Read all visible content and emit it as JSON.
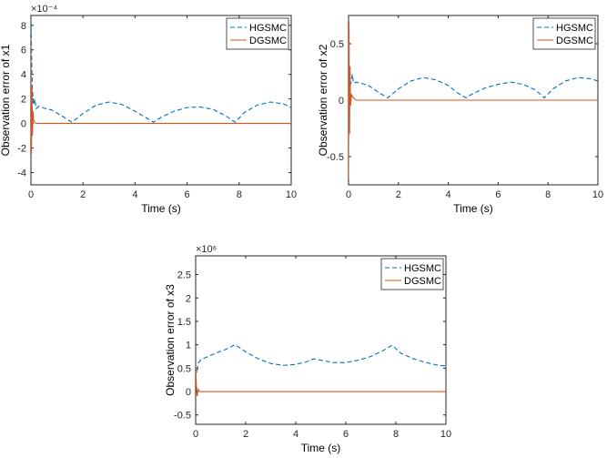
{
  "chart_data": [
    {
      "type": "line",
      "title": "",
      "xlabel": "Time (s)",
      "ylabel": "Observation error of x1",
      "exponent_label": "×10⁻⁴",
      "xlim": [
        0,
        10
      ],
      "ylim": [
        -5,
        8.8
      ],
      "x_ticks": [
        0,
        2,
        4,
        6,
        8,
        10
      ],
      "y_ticks": [
        -4,
        -2,
        0,
        2,
        4,
        6,
        8
      ],
      "legend": {
        "position": "top-right",
        "entries": [
          "HGSMC",
          "DGSMC"
        ]
      },
      "series": [
        {
          "name": "HGSMC",
          "color": "#0072BD",
          "style": "dashed",
          "x": [
            0.0,
            0.05,
            0.1,
            0.15,
            0.2,
            0.3,
            0.5,
            0.8,
            1.2,
            1.57,
            2.0,
            2.5,
            3.0,
            3.5,
            4.0,
            4.4,
            4.71,
            5.0,
            5.5,
            6.0,
            6.5,
            7.0,
            7.5,
            7.85,
            8.2,
            8.7,
            9.2,
            9.7,
            10.0
          ],
          "y": [
            8.5,
            3.0,
            1.5,
            2.0,
            1.2,
            1.4,
            1.25,
            1.1,
            0.6,
            0.1,
            0.8,
            1.5,
            1.75,
            1.55,
            1.0,
            0.5,
            0.1,
            0.5,
            1.0,
            1.3,
            1.35,
            1.15,
            0.6,
            0.1,
            0.9,
            1.5,
            1.75,
            1.6,
            1.3
          ]
        },
        {
          "name": "DGSMC",
          "color": "#D95319",
          "style": "solid",
          "x": [
            0.0,
            0.02,
            0.04,
            0.06,
            0.08,
            0.1,
            0.15,
            0.25,
            10.0
          ],
          "y": [
            7.0,
            -2.5,
            3.0,
            -1.0,
            1.0,
            0.3,
            0.05,
            0.0,
            0.0
          ]
        }
      ]
    },
    {
      "type": "line",
      "title": "",
      "xlabel": "Time (s)",
      "ylabel": "Observation error of x2",
      "exponent_label": "",
      "xlim": [
        0,
        10
      ],
      "ylim": [
        -0.75,
        0.75
      ],
      "x_ticks": [
        0,
        2,
        4,
        6,
        8,
        10
      ],
      "y_ticks": [
        -0.5,
        0,
        0.5
      ],
      "legend": {
        "position": "top-right",
        "entries": [
          "HGSMC",
          "DGSMC"
        ]
      },
      "series": [
        {
          "name": "HGSMC",
          "color": "#0072BD",
          "style": "dashed",
          "x": [
            0.0,
            0.03,
            0.06,
            0.1,
            0.15,
            0.2,
            0.3,
            0.5,
            0.8,
            1.2,
            1.57,
            2.0,
            2.5,
            3.0,
            3.5,
            4.0,
            4.4,
            4.71,
            5.0,
            5.5,
            6.0,
            6.5,
            7.0,
            7.5,
            7.85,
            8.2,
            8.7,
            9.2,
            9.7,
            10.0
          ],
          "y": [
            0.5,
            0.22,
            0.12,
            0.16,
            0.23,
            0.15,
            0.16,
            0.15,
            0.13,
            0.07,
            0.02,
            0.1,
            0.17,
            0.2,
            0.18,
            0.13,
            0.06,
            0.02,
            0.06,
            0.11,
            0.14,
            0.16,
            0.14,
            0.09,
            0.02,
            0.1,
            0.17,
            0.2,
            0.19,
            0.17
          ]
        },
        {
          "name": "DGSMC",
          "color": "#D95319",
          "style": "solid",
          "x": [
            0.0,
            0.02,
            0.04,
            0.06,
            0.08,
            0.12,
            0.2,
            0.3,
            10.0
          ],
          "y": [
            -0.7,
            0.7,
            -0.3,
            0.3,
            -0.05,
            0.05,
            0.02,
            0.0,
            0.0
          ]
        }
      ]
    },
    {
      "type": "line",
      "title": "",
      "xlabel": "Time (s)",
      "ylabel": "Observation error of x3",
      "exponent_label": "×10⁶",
      "xlim": [
        0,
        10
      ],
      "ylim": [
        -0.7,
        2.9
      ],
      "x_ticks": [
        0,
        2,
        4,
        6,
        8,
        10
      ],
      "y_ticks": [
        -0.5,
        0,
        0.5,
        1,
        1.5,
        2,
        2.5
      ],
      "legend": {
        "position": "top-right",
        "entries": [
          "HGSMC",
          "DGSMC"
        ]
      },
      "series": [
        {
          "name": "HGSMC",
          "color": "#0072BD",
          "style": "dashed",
          "x": [
            0.0,
            0.05,
            0.1,
            0.2,
            0.5,
            0.8,
            1.2,
            1.57,
            2.0,
            2.5,
            3.0,
            3.5,
            4.0,
            4.4,
            4.71,
            5.0,
            5.5,
            6.0,
            6.5,
            7.0,
            7.5,
            7.85,
            8.2,
            8.7,
            9.2,
            9.7,
            10.0
          ],
          "y": [
            0.5,
            0.4,
            0.6,
            0.68,
            0.75,
            0.82,
            0.9,
            1.0,
            0.85,
            0.7,
            0.6,
            0.56,
            0.58,
            0.63,
            0.7,
            0.67,
            0.62,
            0.62,
            0.67,
            0.75,
            0.88,
            0.99,
            0.82,
            0.7,
            0.62,
            0.56,
            0.55
          ]
        },
        {
          "name": "DGSMC",
          "color": "#D95319",
          "style": "solid",
          "x": [
            0.0,
            0.03,
            0.06,
            0.1,
            0.15,
            0.25,
            10.0
          ],
          "y": [
            0.55,
            0.1,
            -0.1,
            0.05,
            0.0,
            0.0,
            0.0
          ]
        }
      ]
    }
  ]
}
